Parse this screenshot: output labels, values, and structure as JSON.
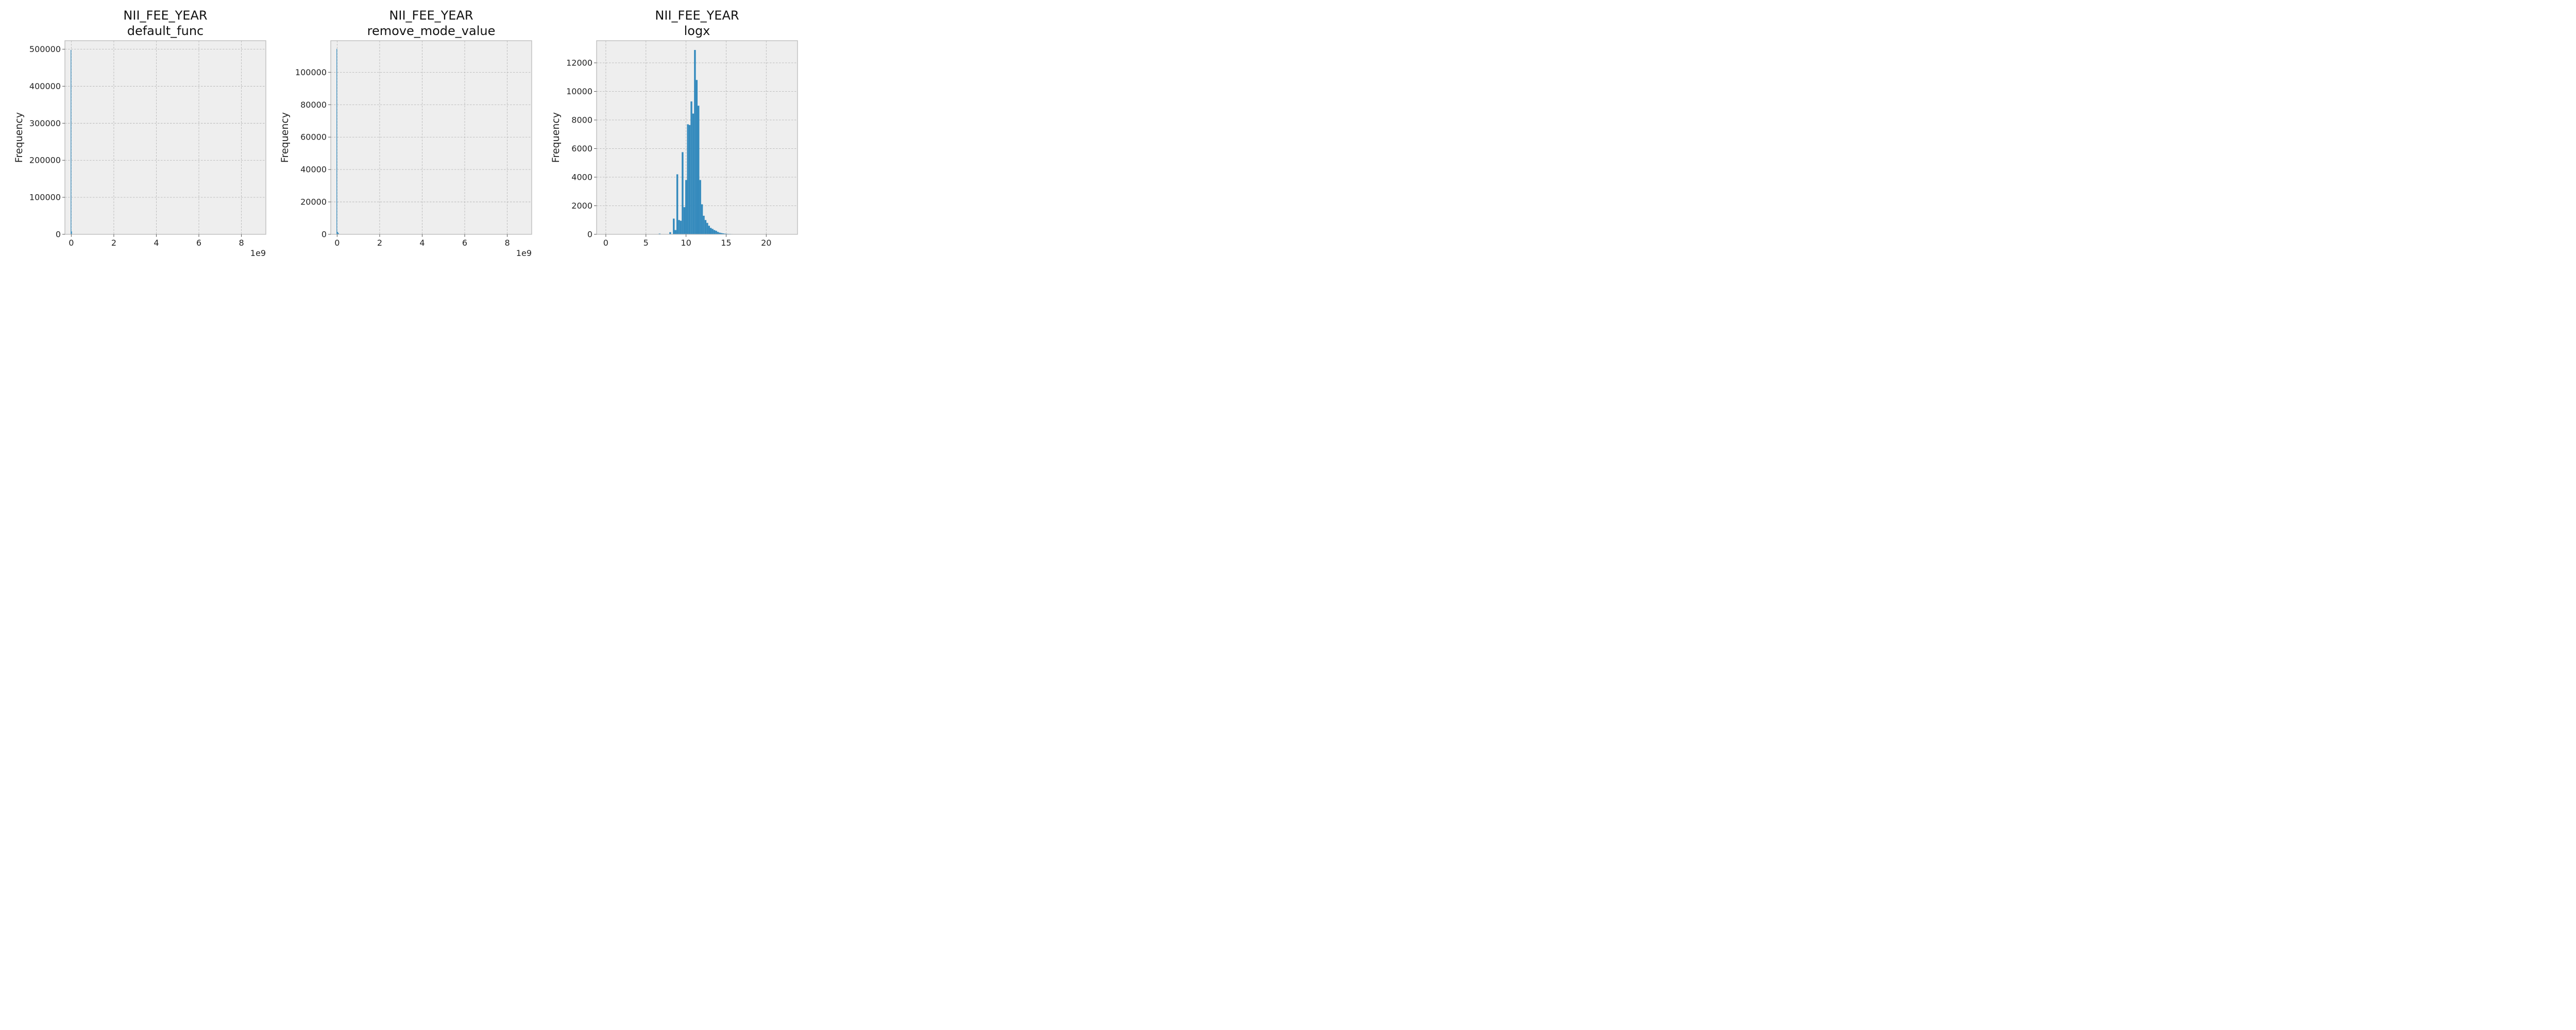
{
  "chart_data": [
    {
      "type": "bar",
      "title": [
        "NII_FEE_YEAR",
        "default_func"
      ],
      "ylabel": "Frequency",
      "xlim": [
        -300000000,
        9150000000
      ],
      "ylim": [
        0,
        523000
      ],
      "xticks": [
        0,
        2000000000,
        4000000000,
        6000000000,
        8000000000
      ],
      "xtick_labels": [
        "0",
        "2",
        "4",
        "6",
        "8"
      ],
      "x_offset_label": "1e9",
      "yticks": [
        0,
        100000,
        200000,
        300000,
        400000,
        500000
      ],
      "ytick_labels": [
        "0",
        "100000",
        "200000",
        "300000",
        "400000",
        "500000"
      ],
      "grid": true,
      "color": "#348ABD",
      "bins": [
        {
          "x0": -30000000,
          "x1": 0,
          "count": 498000
        },
        {
          "x0": 0,
          "x1": 30000000,
          "count": 8000
        }
      ]
    },
    {
      "type": "bar",
      "title": [
        "NII_FEE_YEAR",
        "remove_mode_value"
      ],
      "ylabel": "Frequency",
      "xlim": [
        -300000000,
        9150000000
      ],
      "ylim": [
        0,
        119500
      ],
      "xticks": [
        0,
        2000000000,
        4000000000,
        6000000000,
        8000000000
      ],
      "xtick_labels": [
        "0",
        "2",
        "4",
        "6",
        "8"
      ],
      "x_offset_label": "1e9",
      "yticks": [
        0,
        20000,
        40000,
        60000,
        80000,
        100000
      ],
      "ytick_labels": [
        "0",
        "20000",
        "40000",
        "60000",
        "80000",
        "100000"
      ],
      "grid": true,
      "color": "#348ABD",
      "bins": [
        {
          "x0": -30000000,
          "x1": 0,
          "count": 114500
        },
        {
          "x0": 0,
          "x1": 40000000,
          "count": 1500
        },
        {
          "x0": 40000000,
          "x1": 80000000,
          "count": 800
        }
      ]
    },
    {
      "type": "bar",
      "title": [
        "NII_FEE_YEAR",
        "logx"
      ],
      "ylabel": "Frequency",
      "xlim": [
        -1.15,
        23.9
      ],
      "ylim": [
        0,
        13550
      ],
      "xticks": [
        0,
        5,
        10,
        15,
        20
      ],
      "xtick_labels": [
        "0",
        "5",
        "10",
        "15",
        "20"
      ],
      "yticks": [
        0,
        2000,
        4000,
        6000,
        8000,
        10000,
        12000
      ],
      "ytick_labels": [
        "0",
        "2000",
        "4000",
        "6000",
        "8000",
        "10000",
        "12000"
      ],
      "grid": true,
      "color": "#348ABD",
      "bin_start": 6.6,
      "bin_width": 0.22,
      "counts": [
        50,
        0,
        0,
        0,
        0,
        0,
        150,
        0,
        1100,
        300,
        4200,
        1000,
        950,
        5750,
        1900,
        3800,
        7700,
        7650,
        9300,
        8450,
        12900,
        10800,
        9000,
        3800,
        2100,
        1300,
        1000,
        800,
        600,
        450,
        380,
        300,
        250,
        170,
        120,
        90,
        70,
        50,
        40,
        30,
        25,
        20,
        15,
        10,
        8,
        6,
        5
      ]
    }
  ]
}
